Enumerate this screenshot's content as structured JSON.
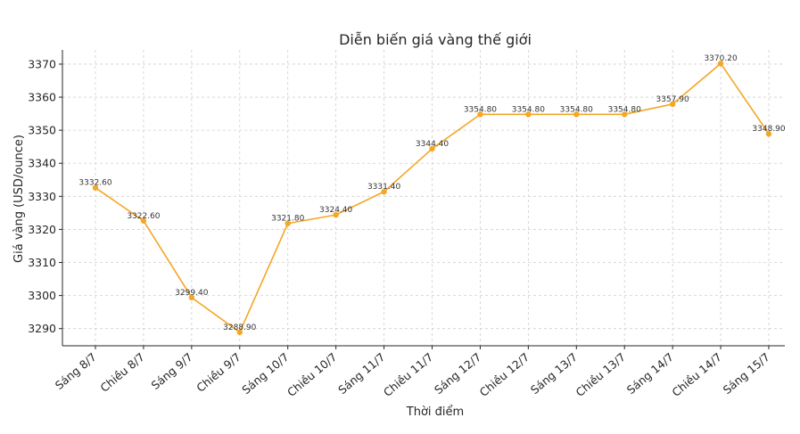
{
  "chart_data": {
    "type": "line",
    "title": "Diễn biến giá vàng thế giới",
    "xlabel": "Thời điểm",
    "ylabel": "Giá vàng (USD/ounce)",
    "categories": [
      "Sáng 8/7",
      "Chiều 8/7",
      "Sáng 9/7",
      "Chiều 9/7",
      "Sáng 10/7",
      "Chiều 10/7",
      "Sáng 11/7",
      "Chiều 11/7",
      "Sáng 12/7",
      "Chiều 12/7",
      "Sáng 13/7",
      "Chiều 13/7",
      "Sáng 14/7",
      "Chiều 14/7",
      "Sáng 15/7"
    ],
    "values": [
      3332.6,
      3322.6,
      3299.4,
      3288.9,
      3321.8,
      3324.4,
      3331.4,
      3344.4,
      3354.8,
      3354.8,
      3354.8,
      3354.8,
      3357.9,
      3370.2,
      3348.9
    ],
    "value_labels": [
      "3332.60",
      "3322.60",
      "3299.40",
      "3288.90",
      "3321.80",
      "3324.40",
      "3331.40",
      "3344.40",
      "3354.80",
      "3354.80",
      "3354.80",
      "3354.80",
      "3357.90",
      "3370.20",
      "3348.90"
    ],
    "yticks": [
      3290,
      3300,
      3310,
      3320,
      3330,
      3340,
      3350,
      3360,
      3370
    ],
    "ylim": [
      3284.8,
      3374.3
    ],
    "grid": true,
    "line_color": "#F5A623",
    "marker_color": "#F5A623"
  }
}
